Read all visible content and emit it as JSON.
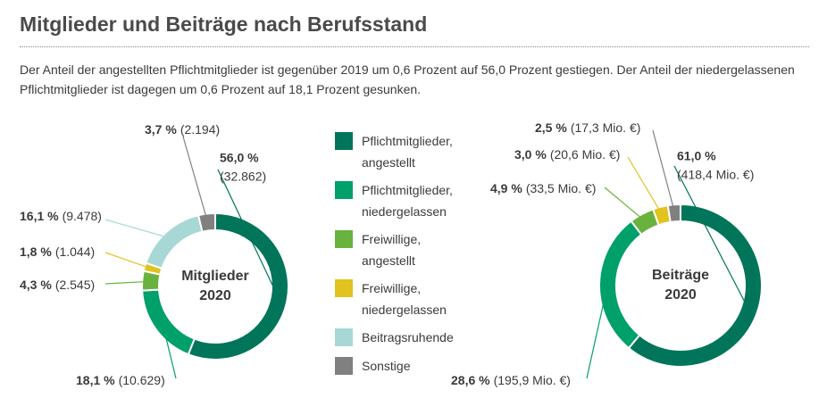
{
  "title": "Mitglieder und Beiträge nach Berufsstand",
  "description": "Der Anteil der angestellten Pflichtmitglieder ist gegenüber 2019 um 0,6 Prozent auf 56,0 Prozent gestiegen. Der Anteil der niedergelassenen Pflichtmitglieder ist dagegen um 0,6 Prozent auf 18,1 Prozent gesunken.",
  "legend": {
    "categories": [
      "Pflichtmitglieder, angestellt",
      "Pflichtmitglieder, niedergelassen",
      "Freiwillige, angestellt",
      "Freiwillige, niedergelassen",
      "Beitragsruhende",
      "Sonstige"
    ],
    "colors": [
      "#00755a",
      "#00a06a",
      "#6ab23e",
      "#e2c21e",
      "#a8d8d5",
      "#808080"
    ]
  },
  "chart_data": [
    {
      "type": "pie",
      "center_label": [
        "Mitglieder",
        "2020"
      ],
      "values": [
        56.0,
        18.1,
        4.3,
        1.8,
        16.1,
        3.7
      ],
      "value_labels": [
        "56,0 %",
        "18,1 %",
        "4,3 %",
        "1,8 %",
        "16,1 %",
        "3,7 %"
      ],
      "counts": [
        32862,
        10629,
        2545,
        1044,
        9478,
        2194
      ],
      "count_labels": [
        "(32.862)",
        "(10.629)",
        "(2.545)",
        "(1.044)",
        "(9.478)",
        "(2.194)"
      ]
    },
    {
      "type": "pie",
      "center_label": [
        "Beiträge",
        "2020"
      ],
      "values": [
        61.0,
        28.6,
        4.9,
        3.0,
        null,
        2.5
      ],
      "value_labels": [
        "61,0 %",
        "28,6 %",
        "4,9 %",
        "3,0 %",
        null,
        "2,5 %"
      ],
      "amounts": [
        418.4,
        195.9,
        33.5,
        20.6,
        null,
        17.3
      ],
      "amount_labels": [
        "(418,4 Mio. €)",
        "(195,9 Mio. €)",
        "(33,5 Mio. €)",
        "(20,6 Mio. €)",
        null,
        "(17,3 Mio. €)"
      ]
    }
  ]
}
